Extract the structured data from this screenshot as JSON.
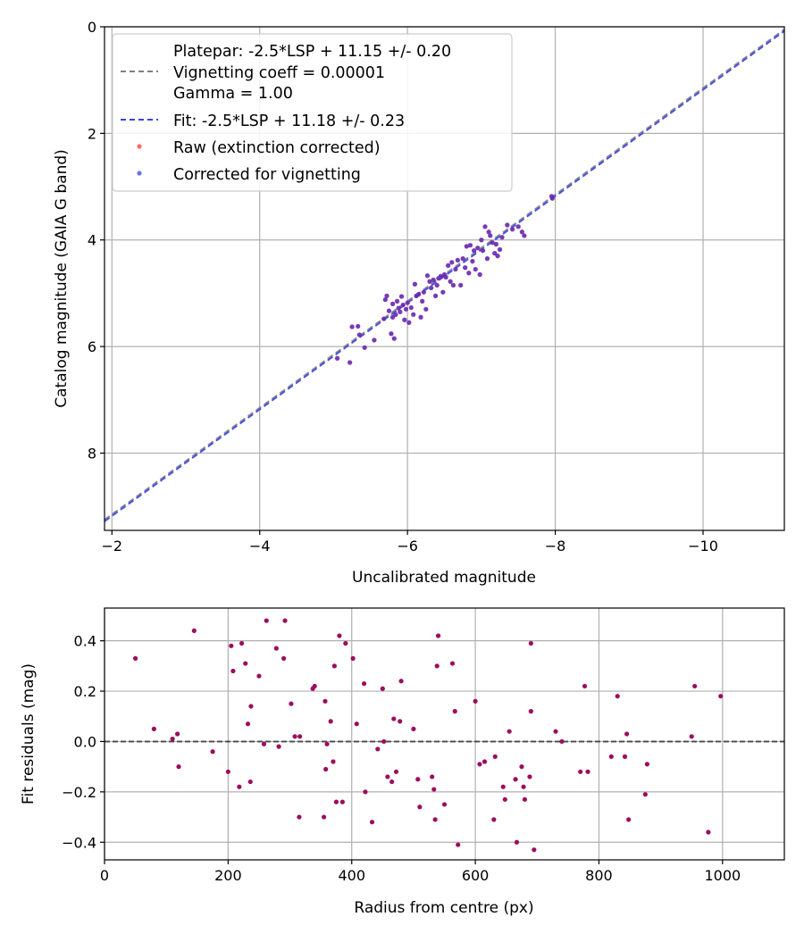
{
  "chart_data": [
    {
      "type": "scatter",
      "xlabel": "Uncalibrated magnitude",
      "ylabel": "Catalog magnitude (GAIA G band)",
      "xlim": [
        -1.9,
        -11.1
      ],
      "ylim": [
        9.45,
        0
      ],
      "xticks": [
        -2,
        -4,
        -6,
        -8,
        -10
      ],
      "xtick_labels": [
        "−2",
        "−4",
        "−6",
        "−8",
        "−10"
      ],
      "yticks": [
        0,
        2,
        4,
        6,
        8
      ],
      "ytick_labels": [
        "0",
        "2",
        "4",
        "6",
        "8"
      ],
      "grid": true,
      "legend_position": "upper-left",
      "legend": {
        "platepar_lines": [
          "Platepar: -2.5*LSP + 11.15 +/- 0.20",
          "Vignetting coeff = 0.00001",
          "Gamma = 1.00"
        ],
        "fit_label": "Fit: -2.5*LSP + 11.18 +/- 0.23",
        "raw_label": "Raw (extinction corrected)",
        "corrected_label": "Corrected for vignetting"
      },
      "lines": [
        {
          "name": "Platepar",
          "intercept": 11.15,
          "style": "dashed",
          "color": "#808080"
        },
        {
          "name": "Fit",
          "intercept": 11.18,
          "style": "dashed",
          "color": "#3a42e6"
        }
      ],
      "points": [
        [
          -5.05,
          6.22
        ],
        [
          -5.22,
          6.3
        ],
        [
          -5.25,
          5.63
        ],
        [
          -5.33,
          5.62
        ],
        [
          -5.35,
          5.78
        ],
        [
          -5.42,
          6.02
        ],
        [
          -5.55,
          5.88
        ],
        [
          -5.68,
          5.48
        ],
        [
          -5.7,
          5.12
        ],
        [
          -5.72,
          5.05
        ],
        [
          -5.75,
          5.33
        ],
        [
          -5.78,
          5.76
        ],
        [
          -5.8,
          5.2
        ],
        [
          -5.8,
          5.45
        ],
        [
          -5.82,
          5.85
        ],
        [
          -5.84,
          5.4
        ],
        [
          -5.86,
          5.15
        ],
        [
          -5.88,
          5.28
        ],
        [
          -5.9,
          5.35
        ],
        [
          -5.92,
          5.06
        ],
        [
          -5.94,
          5.22
        ],
        [
          -5.96,
          5.5
        ],
        [
          -5.98,
          5.3
        ],
        [
          -6.0,
          5.18
        ],
        [
          -6.02,
          5.55
        ],
        [
          -6.05,
          5.27
        ],
        [
          -6.08,
          5.4
        ],
        [
          -6.1,
          4.83
        ],
        [
          -6.12,
          5.05
        ],
        [
          -6.15,
          5.02
        ],
        [
          -6.18,
          5.45
        ],
        [
          -6.2,
          5.15
        ],
        [
          -6.22,
          4.98
        ],
        [
          -6.25,
          5.3
        ],
        [
          -6.27,
          4.67
        ],
        [
          -6.3,
          4.78
        ],
        [
          -6.32,
          4.9
        ],
        [
          -6.35,
          4.75
        ],
        [
          -6.38,
          5.05
        ],
        [
          -6.4,
          4.85
        ],
        [
          -6.42,
          4.72
        ],
        [
          -6.45,
          4.68
        ],
        [
          -6.48,
          4.98
        ],
        [
          -6.5,
          4.65
        ],
        [
          -6.52,
          4.7
        ],
        [
          -6.55,
          4.48
        ],
        [
          -6.58,
          4.78
        ],
        [
          -6.6,
          4.42
        ],
        [
          -6.62,
          4.85
        ],
        [
          -6.65,
          4.55
        ],
        [
          -6.68,
          4.38
        ],
        [
          -6.72,
          4.85
        ],
        [
          -6.75,
          4.35
        ],
        [
          -6.78,
          4.52
        ],
        [
          -6.8,
          4.12
        ],
        [
          -6.83,
          4.62
        ],
        [
          -6.85,
          4.1
        ],
        [
          -6.88,
          4.4
        ],
        [
          -6.9,
          4.2
        ],
        [
          -6.92,
          4.55
        ],
        [
          -6.95,
          4.15
        ],
        [
          -6.98,
          4.65
        ],
        [
          -7.0,
          4.0
        ],
        [
          -7.02,
          4.2
        ],
        [
          -7.05,
          3.75
        ],
        [
          -7.08,
          4.35
        ],
        [
          -7.1,
          3.85
        ],
        [
          -7.12,
          3.92
        ],
        [
          -7.15,
          4.05
        ],
        [
          -7.18,
          4.25
        ],
        [
          -7.2,
          4.08
        ],
        [
          -7.22,
          4.3
        ],
        [
          -7.25,
          4.18
        ],
        [
          -7.28,
          3.95
        ],
        [
          -7.35,
          3.72
        ],
        [
          -7.42,
          3.8
        ],
        [
          -7.5,
          3.75
        ],
        [
          -7.55,
          3.85
        ],
        [
          -7.58,
          3.92
        ],
        [
          -7.95,
          3.18
        ],
        [
          -7.96,
          3.22
        ]
      ]
    },
    {
      "type": "scatter",
      "xlabel": "Radius from centre (px)",
      "ylabel": "Fit residuals (mag)",
      "xlim": [
        0,
        1100
      ],
      "ylim": [
        -0.47,
        0.53
      ],
      "xticks": [
        0,
        200,
        400,
        600,
        800,
        1000
      ],
      "xtick_labels": [
        "0",
        "200",
        "400",
        "600",
        "800",
        "1000"
      ],
      "yticks": [
        -0.4,
        -0.2,
        0.0,
        0.2,
        0.4
      ],
      "ytick_labels": [
        "−0.4",
        "−0.2",
        "0.0",
        "0.2",
        "0.4"
      ],
      "grid": true,
      "zero_line": 0,
      "points": [
        [
          50,
          0.33
        ],
        [
          80,
          0.05
        ],
        [
          110,
          0.01
        ],
        [
          118,
          0.03
        ],
        [
          120,
          -0.1
        ],
        [
          145,
          0.44
        ],
        [
          175,
          -0.04
        ],
        [
          200,
          -0.12
        ],
        [
          205,
          0.38
        ],
        [
          208,
          0.28
        ],
        [
          218,
          -0.18
        ],
        [
          222,
          0.39
        ],
        [
          228,
          0.31
        ],
        [
          232,
          0.07
        ],
        [
          237,
          0.14
        ],
        [
          236,
          -0.16
        ],
        [
          250,
          0.26
        ],
        [
          258,
          -0.01
        ],
        [
          262,
          0.48
        ],
        [
          278,
          0.37
        ],
        [
          282,
          -0.02
        ],
        [
          290,
          0.33
        ],
        [
          292,
          0.48
        ],
        [
          302,
          0.15
        ],
        [
          308,
          0.02
        ],
        [
          315,
          -0.3
        ],
        [
          316,
          0.02
        ],
        [
          337,
          0.21
        ],
        [
          340,
          0.22
        ],
        [
          355,
          -0.3
        ],
        [
          357,
          0.16
        ],
        [
          358,
          -0.11
        ],
        [
          360,
          -0.01
        ],
        [
          366,
          0.08
        ],
        [
          370,
          -0.08
        ],
        [
          372,
          0.3
        ],
        [
          375,
          -0.24
        ],
        [
          380,
          0.42
        ],
        [
          385,
          -0.24
        ],
        [
          390,
          0.39
        ],
        [
          402,
          0.33
        ],
        [
          408,
          0.07
        ],
        [
          420,
          0.23
        ],
        [
          422,
          -0.2
        ],
        [
          433,
          -0.32
        ],
        [
          442,
          -0.03
        ],
        [
          450,
          0.21
        ],
        [
          452,
          0.0
        ],
        [
          458,
          -0.14
        ],
        [
          465,
          -0.16
        ],
        [
          468,
          0.09
        ],
        [
          472,
          -0.12
        ],
        [
          478,
          0.08
        ],
        [
          480,
          0.24
        ],
        [
          500,
          0.05
        ],
        [
          507,
          -0.15
        ],
        [
          510,
          -0.26
        ],
        [
          530,
          -0.14
        ],
        [
          533,
          -0.19
        ],
        [
          535,
          -0.31
        ],
        [
          538,
          0.3
        ],
        [
          540,
          0.42
        ],
        [
          550,
          -0.25
        ],
        [
          563,
          0.31
        ],
        [
          567,
          0.12
        ],
        [
          572,
          -0.41
        ],
        [
          600,
          0.16
        ],
        [
          607,
          -0.09
        ],
        [
          615,
          -0.08
        ],
        [
          630,
          -0.31
        ],
        [
          632,
          -0.06
        ],
        [
          645,
          -0.18
        ],
        [
          648,
          -0.23
        ],
        [
          655,
          0.04
        ],
        [
          665,
          -0.15
        ],
        [
          667,
          -0.4
        ],
        [
          675,
          -0.1
        ],
        [
          678,
          -0.18
        ],
        [
          680,
          -0.23
        ],
        [
          688,
          -0.14
        ],
        [
          690,
          0.12
        ],
        [
          690,
          0.39
        ],
        [
          695,
          -0.43
        ],
        [
          730,
          0.04
        ],
        [
          740,
          0.0
        ],
        [
          770,
          -0.12
        ],
        [
          777,
          0.22
        ],
        [
          782,
          -0.12
        ],
        [
          820,
          -0.06
        ],
        [
          830,
          0.18
        ],
        [
          842,
          -0.06
        ],
        [
          845,
          0.03
        ],
        [
          848,
          -0.31
        ],
        [
          875,
          -0.21
        ],
        [
          878,
          -0.09
        ],
        [
          950,
          0.02
        ],
        [
          955,
          0.22
        ],
        [
          977,
          -0.36
        ],
        [
          997,
          0.18
        ]
      ]
    }
  ]
}
